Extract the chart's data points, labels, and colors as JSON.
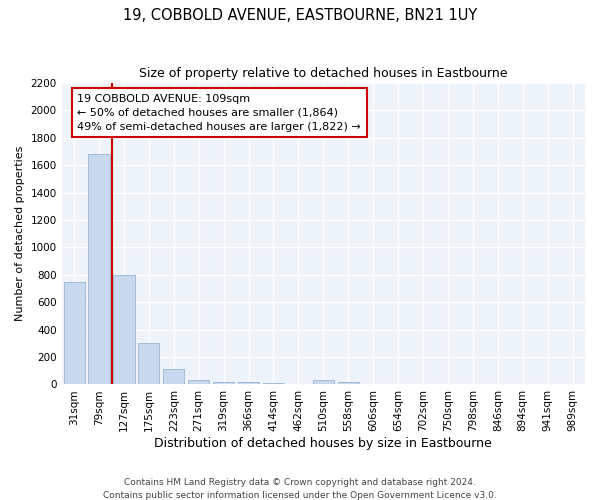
{
  "title": "19, COBBOLD AVENUE, EASTBOURNE, BN21 1UY",
  "subtitle": "Size of property relative to detached houses in Eastbourne",
  "xlabel": "Distribution of detached houses by size in Eastbourne",
  "ylabel": "Number of detached properties",
  "categories": [
    "31sqm",
    "79sqm",
    "127sqm",
    "175sqm",
    "223sqm",
    "271sqm",
    "319sqm",
    "366sqm",
    "414sqm",
    "462sqm",
    "510sqm",
    "558sqm",
    "606sqm",
    "654sqm",
    "702sqm",
    "750sqm",
    "798sqm",
    "846sqm",
    "894sqm",
    "941sqm",
    "989sqm"
  ],
  "values": [
    750,
    1680,
    800,
    300,
    110,
    30,
    20,
    20,
    10,
    0,
    30,
    20,
    0,
    0,
    0,
    0,
    0,
    0,
    0,
    0,
    0
  ],
  "bar_color": "#c8d9ef",
  "bar_edge_color": "#9ab4d4",
  "vline_x": 1.5,
  "vline_color": "#cc0000",
  "annotation_text": "19 COBBOLD AVENUE: 109sqm\n← 50% of detached houses are smaller (1,864)\n49% of semi-detached houses are larger (1,822) →",
  "annotation_box_color": "white",
  "annotation_box_edge_color": "#cc0000",
  "ylim": [
    0,
    2200
  ],
  "yticks": [
    0,
    200,
    400,
    600,
    800,
    1000,
    1200,
    1400,
    1600,
    1800,
    2000,
    2200
  ],
  "footnote": "Contains HM Land Registry data © Crown copyright and database right 2024.\nContains public sector information licensed under the Open Government Licence v3.0.",
  "background_color": "#eef2f9",
  "grid_color": "white",
  "title_fontsize": 10.5,
  "subtitle_fontsize": 9,
  "tick_fontsize": 7.5,
  "ylabel_fontsize": 8,
  "xlabel_fontsize": 9,
  "annotation_fontsize": 8,
  "footnote_fontsize": 6.5
}
